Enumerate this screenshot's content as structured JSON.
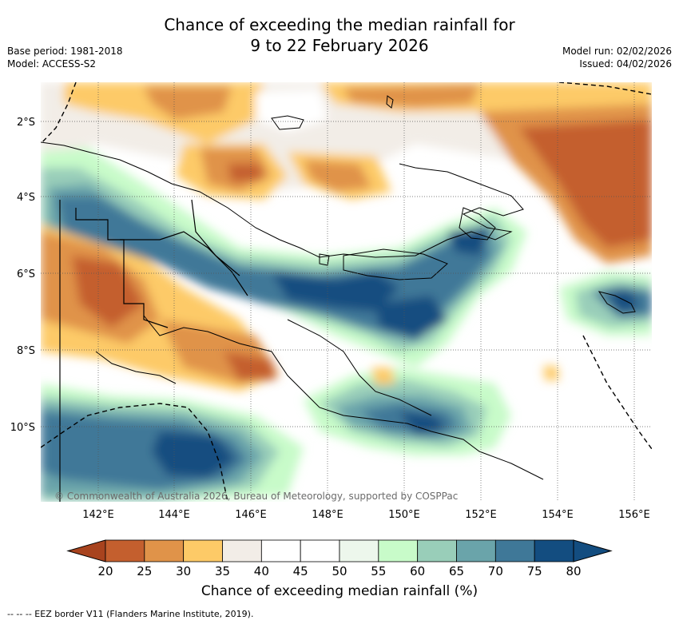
{
  "title_line1": "Chance of exceeding the median rainfall for",
  "title_line2": "9 to 22 February 2026",
  "base_period": "Base period: 1981-2018",
  "model": "Model: ACCESS-S2",
  "model_run": "Model run: 02/02/2026",
  "issued": "Issued: 04/02/2026",
  "lat_labels": [
    "2°S",
    "4°S",
    "6°S",
    "8°S",
    "10°S"
  ],
  "lon_labels": [
    "142°E",
    "144°E",
    "146°E",
    "148°E",
    "150°E",
    "152°E",
    "154°E",
    "156°E"
  ],
  "copyright": "© Commonwealth of Australia 2026, Bureau of Meteorology, supported by COSPPac",
  "colorbar": {
    "title": "Chance of exceeding median rainfall (%)",
    "ticks": [
      "20",
      "25",
      "30",
      "35",
      "40",
      "45",
      "50",
      "55",
      "60",
      "65",
      "70",
      "75",
      "80"
    ],
    "colors": [
      "#a8431e",
      "#c45f2e",
      "#e09349",
      "#fdca67",
      "#f2ede7",
      "#ffffff",
      "#ffffff",
      "#edf7ec",
      "#c8fbc9",
      "#99ceb9",
      "#6aa4aa",
      "#3f7898",
      "#134d80"
    ]
  },
  "footer": "-- -- -- EEZ border V11 (Flanders Marine Institute, 2019)."
}
